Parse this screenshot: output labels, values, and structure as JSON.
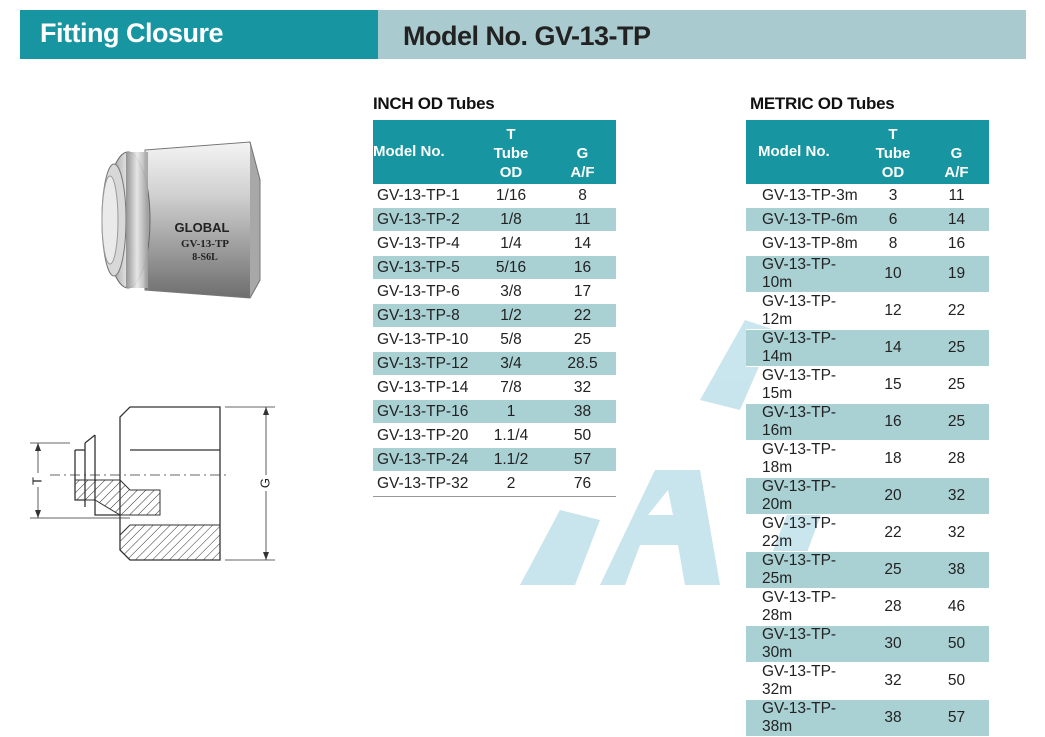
{
  "header": {
    "section_label": "Fitting Closure",
    "model_title": "Model No. GV-13-TP"
  },
  "product_photo": {
    "engraving_brand": "GLOBAL",
    "engraving_model": "GV-13-TP",
    "engraving_material": "8-S6L"
  },
  "drawing": {
    "dimension_t": "T",
    "dimension_g": "G"
  },
  "watermark_text": "GLOBAL",
  "inch_table": {
    "title": "INCH OD Tubes",
    "headers": {
      "model": "Model No.",
      "t_line1": "T",
      "t_line2": "Tube",
      "t_line3": "OD",
      "g_line1": "G",
      "g_line2": "A/F"
    },
    "rows": [
      [
        "GV-13-TP-1",
        "1/16",
        "8"
      ],
      [
        "GV-13-TP-2",
        "1/8",
        "11"
      ],
      [
        "GV-13-TP-4",
        "1/4",
        "14"
      ],
      [
        "GV-13-TP-5",
        "5/16",
        "16"
      ],
      [
        "GV-13-TP-6",
        "3/8",
        "17"
      ],
      [
        "GV-13-TP-8",
        "1/2",
        "22"
      ],
      [
        "GV-13-TP-10",
        "5/8",
        "25"
      ],
      [
        "GV-13-TP-12",
        "3/4",
        "28.5"
      ],
      [
        "GV-13-TP-14",
        "7/8",
        "32"
      ],
      [
        "GV-13-TP-16",
        "1",
        "38"
      ],
      [
        "GV-13-TP-20",
        "1.1/4",
        "50"
      ],
      [
        "GV-13-TP-24",
        "1.1/2",
        "57"
      ],
      [
        "GV-13-TP-32",
        "2",
        "76"
      ]
    ]
  },
  "metric_table": {
    "title": "METRIC OD Tubes",
    "headers": {
      "model": "Model No.",
      "t_line1": "T",
      "t_line2": "Tube",
      "t_line3": "OD",
      "g_line1": "G",
      "g_line2": "A/F"
    },
    "rows": [
      [
        "GV-13-TP-3m",
        "3",
        "11"
      ],
      [
        "GV-13-TP-6m",
        "6",
        "14"
      ],
      [
        "GV-13-TP-8m",
        "8",
        "16"
      ],
      [
        "GV-13-TP-10m",
        "10",
        "19"
      ],
      [
        "GV-13-TP-12m",
        "12",
        "22"
      ],
      [
        "GV-13-TP-14m",
        "14",
        "25"
      ],
      [
        "GV-13-TP-15m",
        "15",
        "25"
      ],
      [
        "GV-13-TP-16m",
        "16",
        "25"
      ],
      [
        "GV-13-TP-18m",
        "18",
        "28"
      ],
      [
        "GV-13-TP-20m",
        "20",
        "32"
      ],
      [
        "GV-13-TP-22m",
        "22",
        "32"
      ],
      [
        "GV-13-TP-25m",
        "25",
        "38"
      ],
      [
        "GV-13-TP-28m",
        "28",
        "46"
      ],
      [
        "GV-13-TP-30m",
        "30",
        "50"
      ],
      [
        "GV-13-TP-32m",
        "32",
        "50"
      ],
      [
        "GV-13-TP-38m",
        "38",
        "57"
      ]
    ]
  },
  "colors": {
    "teal": "#1795a0",
    "light_teal": "#a9cbd0",
    "row_stripe": "#a9d0d3",
    "watermark": "#bfe0ea"
  }
}
